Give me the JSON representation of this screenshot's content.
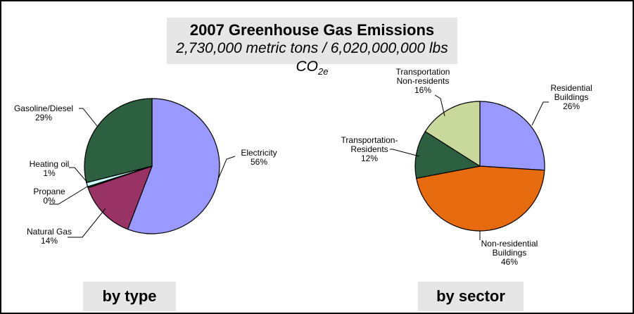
{
  "title": "2007 Greenhouse Gas Emissions",
  "subtitle_main": "2,730,000 metric tons / 6,020,000,000 lbs CO",
  "subtitle_sub": "2e",
  "chart_data": [
    {
      "type": "pie",
      "caption": "by type",
      "slices": [
        {
          "label": [
            "Electricity",
            "56%"
          ],
          "value": 56,
          "color": "#9999ff"
        },
        {
          "label": [
            "Natural Gas",
            "14%"
          ],
          "value": 14,
          "color": "#993366"
        },
        {
          "label": [
            "Propane",
            "0%"
          ],
          "value": 0.3,
          "color": "#1f5c3c"
        },
        {
          "label": [
            "Heating oil",
            "1%"
          ],
          "value": 1,
          "color": "#ccffff"
        },
        {
          "label": [
            "Gasoline/Diesel",
            "29%"
          ],
          "value": 29,
          "color": "#2d6040"
        }
      ]
    },
    {
      "type": "pie",
      "caption": "by sector",
      "slices": [
        {
          "label": [
            "Residential",
            "Buildings",
            "26%"
          ],
          "value": 26,
          "color": "#9999ff"
        },
        {
          "label": [
            "Non-residential",
            "Buildings",
            "46%"
          ],
          "value": 46,
          "color": "#e66a0e"
        },
        {
          "label": [
            "Transportation-",
            "Residents",
            "12%"
          ],
          "value": 12,
          "color": "#2d6040"
        },
        {
          "label": [
            "Transportation",
            "Non-residents",
            "16%"
          ],
          "value": 16,
          "color": "#c8d99b"
        }
      ]
    }
  ]
}
